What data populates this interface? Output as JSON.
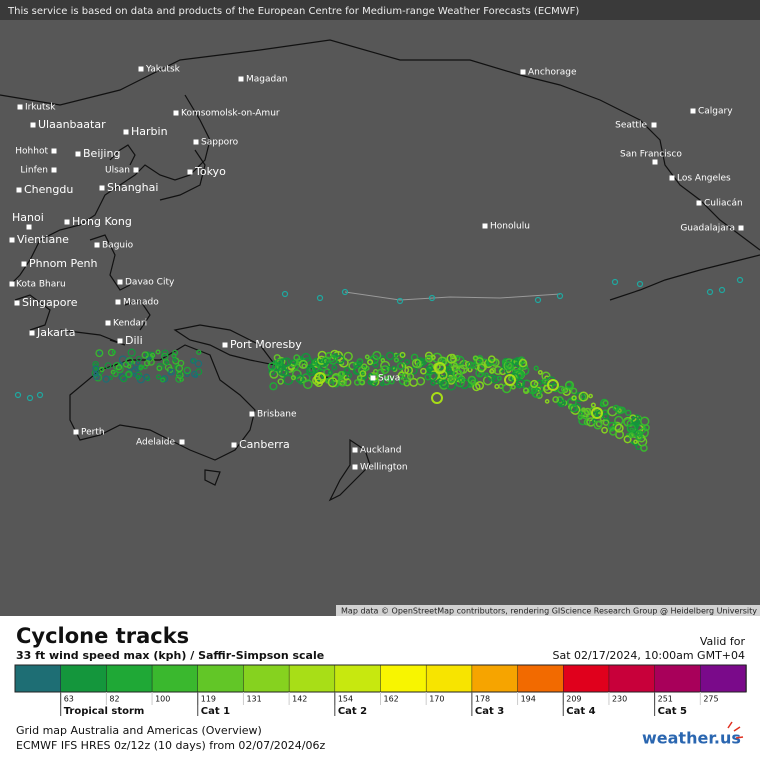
{
  "header": {
    "notice": "This service is based on data and products of the European Centre for Medium-range Weather Forecasts (ECMWF)"
  },
  "map": {
    "cities": [
      "Yakutsk",
      "Magadan",
      "Anchorage",
      "Irkutsk",
      "Ulaanbaatar",
      "Komsomolsk-on-Amur",
      "Harbin",
      "Calgary",
      "Seattle",
      "Sapporo",
      "Hohhot",
      "Beijing",
      "San Francisco",
      "Linfen",
      "Ulsan",
      "Tokyo",
      "Los Angeles",
      "Shanghai",
      "Chengdu",
      "Culiacán",
      "Hanoi",
      "Hong Kong",
      "Honolulu",
      "Guadalajara",
      "Vientiane",
      "Baguio",
      "Phnom Penh",
      "Davao City",
      "Kota Bharu",
      "Singapore",
      "Manado",
      "Kendari",
      "Jakarta",
      "Dili",
      "Port Moresby",
      "Suva",
      "Brisbane",
      "Perth",
      "Adelaide",
      "Canberra",
      "Auckland",
      "Wellington"
    ],
    "attribution": "Map data © OpenStreetMap contributors, rendering GIScience Research Group @ Heidelberg University"
  },
  "legend": {
    "title": "Cyclone tracks",
    "subtitle": "33 ft wind speed max (kph) / Saffir-Simpson scale",
    "valid_label": "Valid for",
    "valid_time": "Sat 02/17/2024, 10:00am GMT+04",
    "scale": {
      "colors": [
        "#1e6e74",
        "#14963c",
        "#1fa836",
        "#3ab82e",
        "#62c627",
        "#86d21f",
        "#a8de17",
        "#c7e80f",
        "#f8f500",
        "#f7e400",
        "#f6a400",
        "#f26a00",
        "#e0001c",
        "#c8003a",
        "#a8005a",
        "#7a0a8a"
      ],
      "ticks": [
        63,
        82,
        100,
        119,
        131,
        142,
        154,
        162,
        170,
        178,
        194,
        209,
        230,
        251,
        275
      ]
    },
    "categories": [
      "Tropical storm",
      "Cat 1",
      "Cat 2",
      "Cat 3",
      "Cat 4",
      "Cat 5"
    ]
  },
  "footer": {
    "grid": "Grid map Australia and Americas (Overview)",
    "model": "ECMWF IFS HRES 0z/12z (10 days) from  02/07/2024/06z",
    "logo": "weather.us"
  }
}
